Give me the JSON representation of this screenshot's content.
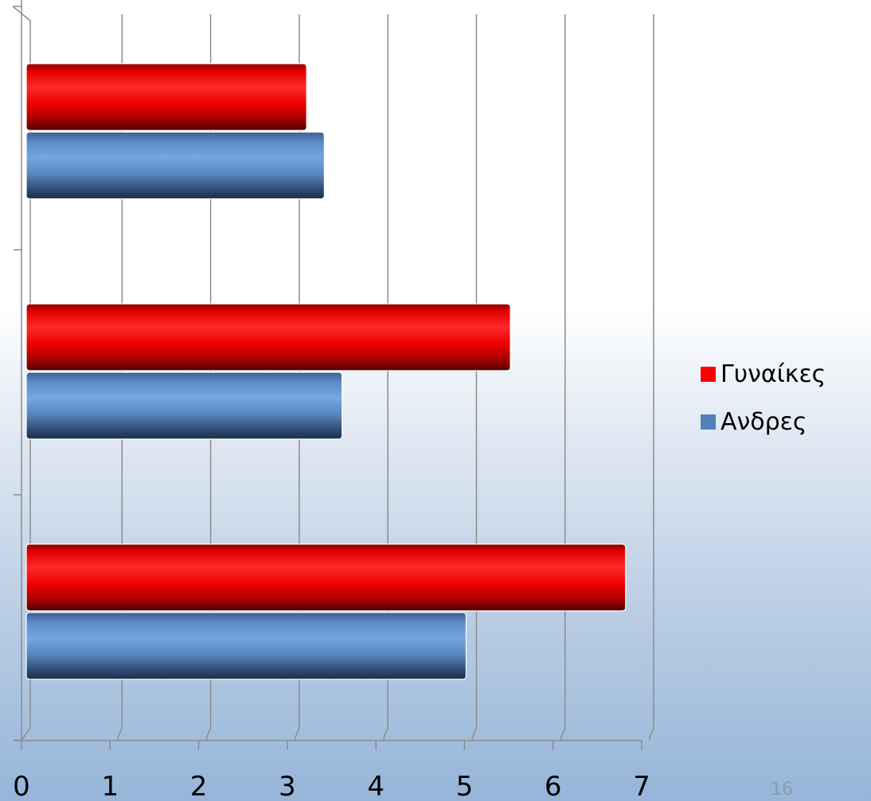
{
  "slide": {
    "page_number": "16"
  },
  "colors": {
    "women": "#ff0000",
    "men": "#4f81bd",
    "grid": "#8c8c8c"
  },
  "chart_data": {
    "type": "bar",
    "orientation": "horizontal",
    "style": "3d-cylinder",
    "categories": [
      "",
      "",
      ""
    ],
    "series": [
      {
        "name": "Γυναίκες",
        "values": [
          3.2,
          5.5,
          6.8
        ],
        "color": "#ff0000"
      },
      {
        "name": "Ανδρες",
        "values": [
          3.4,
          3.6,
          5.0
        ],
        "color": "#4f81bd"
      }
    ],
    "xlim": [
      0,
      7
    ],
    "x_ticks": [
      "0",
      "1",
      "2",
      "3",
      "4",
      "5",
      "6",
      "7"
    ],
    "grid": true,
    "legend_position": "right",
    "title": "",
    "xlabel": "",
    "ylabel": ""
  }
}
